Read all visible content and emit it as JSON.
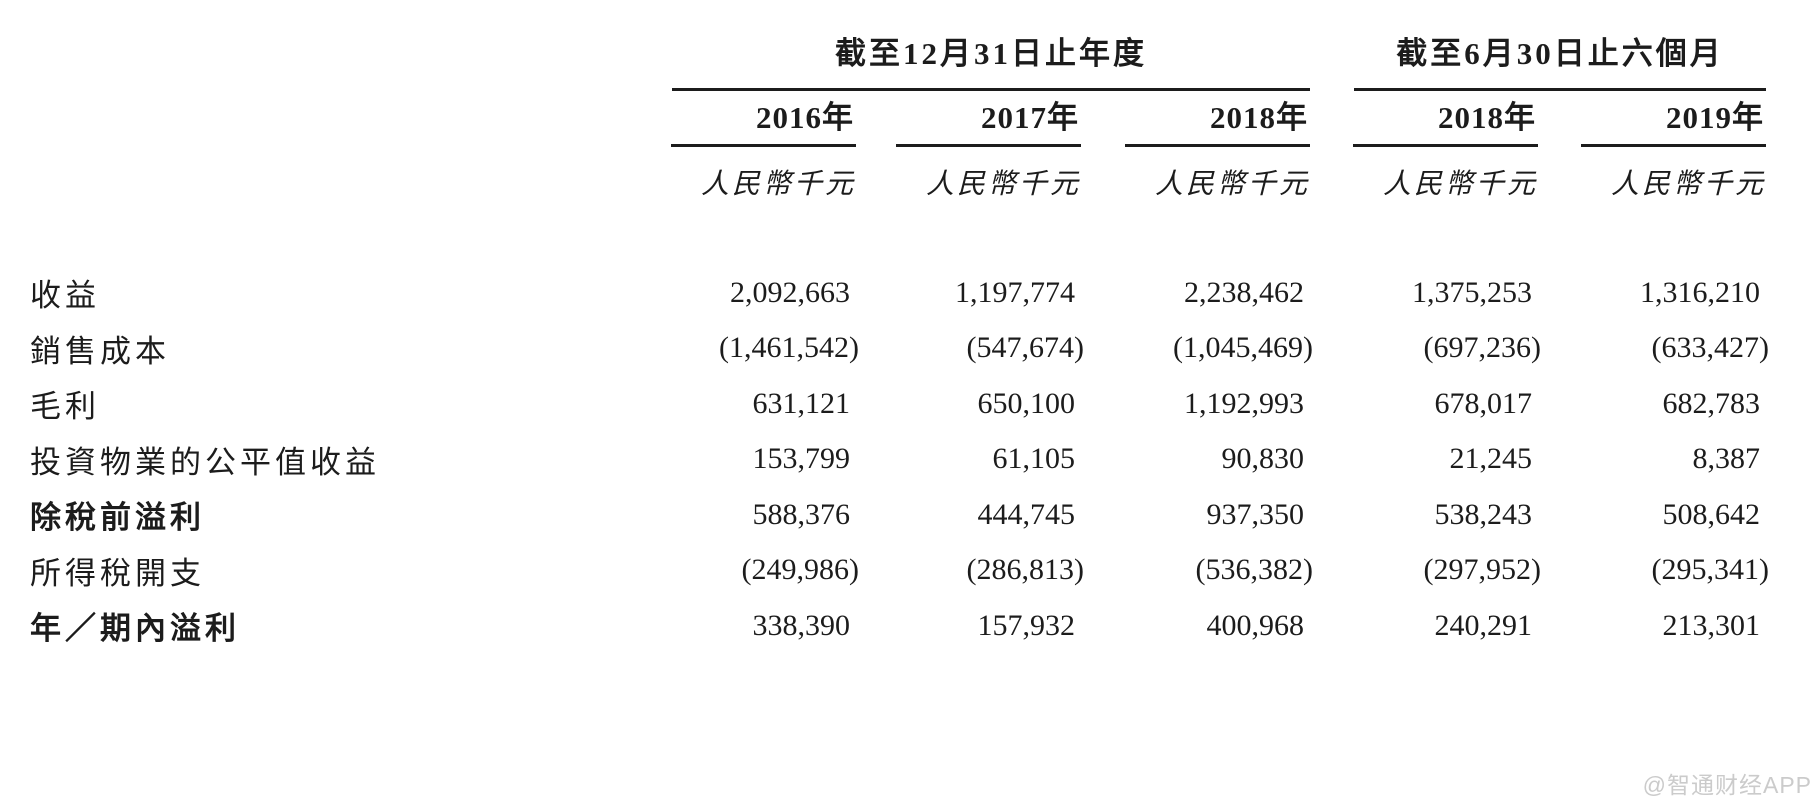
{
  "table": {
    "group_headers": [
      {
        "label": "截至12月31日止年度",
        "span": 3
      },
      {
        "label": "截至6月30日止六個月",
        "span": 2
      }
    ],
    "year_headers": [
      "2016年",
      "2017年",
      "2018年",
      "2018年",
      "2019年"
    ],
    "unit_labels": [
      "人民幣千元",
      "人民幣千元",
      "人民幣千元",
      "人民幣千元",
      "人民幣千元"
    ],
    "rows": [
      {
        "label": "收益",
        "bold": false,
        "values": [
          "2,092,663",
          "1,197,774",
          "2,238,462",
          "1,375,253",
          "1,316,210"
        ]
      },
      {
        "label": "銷售成本",
        "bold": false,
        "values": [
          "(1,461,542)",
          "(547,674)",
          "(1,045,469)",
          "(697,236)",
          "(633,427)"
        ]
      },
      {
        "label": "毛利",
        "bold": false,
        "values": [
          "631,121",
          "650,100",
          "1,192,993",
          "678,017",
          "682,783"
        ]
      },
      {
        "label": "投資物業的公平值收益",
        "bold": false,
        "values": [
          "153,799",
          "61,105",
          "90,830",
          "21,245",
          "8,387"
        ]
      },
      {
        "label": "除稅前溢利",
        "bold": true,
        "values": [
          "588,376",
          "444,745",
          "937,350",
          "538,243",
          "508,642"
        ]
      },
      {
        "label": "所得稅開支",
        "bold": false,
        "values": [
          "(249,986)",
          "(286,813)",
          "(536,382)",
          "(297,952)",
          "(295,341)"
        ]
      },
      {
        "label": "年／期內溢利",
        "bold": true,
        "values": [
          "338,390",
          "157,932",
          "400,968",
          "240,291",
          "213,301"
        ]
      }
    ]
  },
  "watermark": "@智通财经APP",
  "colors": {
    "text": "#1c1c1c",
    "rule": "#1c1c1c",
    "watermark": "#cbcbcb",
    "background": "#ffffff"
  }
}
